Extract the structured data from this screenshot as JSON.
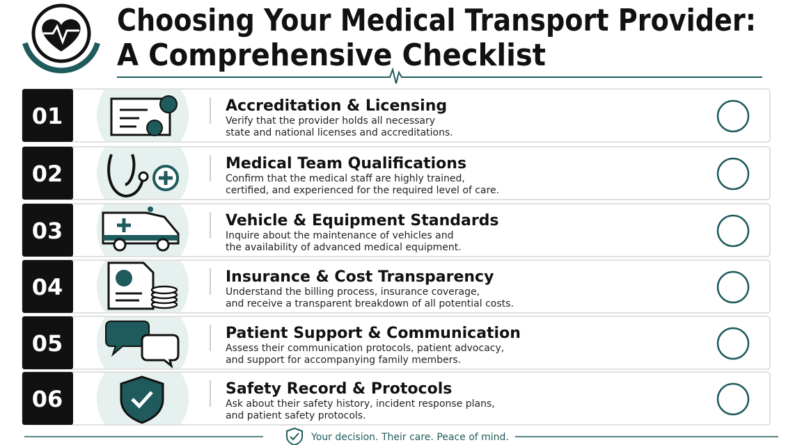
{
  "header": {
    "title_lines": [
      "Choosing Your Medical Transport Provider:",
      "A Comprehensive Checklist"
    ]
  },
  "items": [
    {
      "number": "01",
      "title": "Accreditation & Licensing",
      "description": [
        "Verify that the provider holds all necessary",
        "state and national licenses and accreditations."
      ]
    },
    {
      "number": "02",
      "title": "Medical Team Qualifications",
      "description": [
        "Confirm that the medical staff are highly trained,",
        "certified, and experienced for the required level of care."
      ]
    },
    {
      "number": "03",
      "title": "Vehicle & Equipment Standards",
      "description": [
        "Inquire about the maintenance of vehicles and",
        "the availability of advanced medical equipment."
      ]
    },
    {
      "number": "04",
      "title": "Insurance & Cost Transparency",
      "description": [
        "Understand the billing process, insurance coverage,",
        "and receive a transparent breakdown of all potential costs."
      ]
    },
    {
      "number": "05",
      "title": "Patient Support & Communication",
      "description": [
        "Assess their communication protocols, patient advocacy,",
        "and support for accompanying family members."
      ]
    },
    {
      "number": "06",
      "title": "Safety Record & Protocols",
      "description": [
        "Ask about their safety history, incident response plans,",
        "and patient safety protocols."
      ]
    }
  ],
  "footer": {
    "tagline": "Your decision. Their care. Peace of mind."
  }
}
